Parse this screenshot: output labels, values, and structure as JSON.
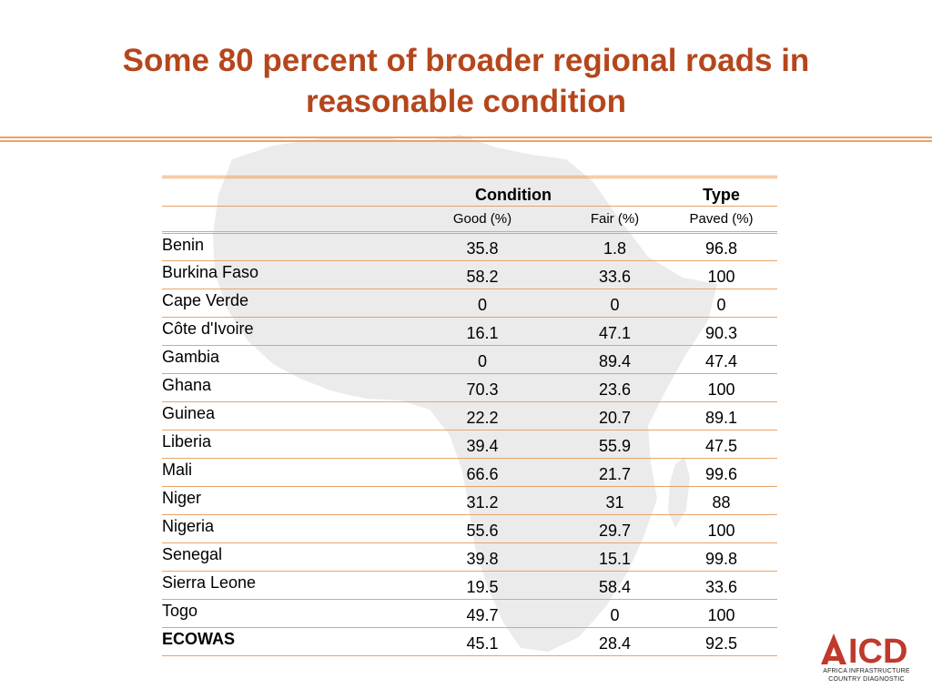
{
  "title": "Some 80 percent of broader regional roads in reasonable condition",
  "table": {
    "group_headers": {
      "condition": "Condition",
      "type": "Type"
    },
    "sub_headers": {
      "good": "Good (%)",
      "fair": "Fair (%)",
      "paved": "Paved (%)"
    },
    "rows": [
      {
        "country": "Benin",
        "good": "35.8",
        "fair": "1.8",
        "paved": "96.8"
      },
      {
        "country": "Burkina Faso",
        "good": "58.2",
        "fair": "33.6",
        "paved": "100"
      },
      {
        "country": "Cape Verde",
        "good": "0",
        "fair": "0",
        "paved": "0"
      },
      {
        "country": "Côte d'Ivoire",
        "good": "16.1",
        "fair": "47.1",
        "paved": "90.3"
      },
      {
        "country": "Gambia",
        "good": "0",
        "fair": "89.4",
        "paved": "47.4"
      },
      {
        "country": "Ghana",
        "good": "70.3",
        "fair": "23.6",
        "paved": "100"
      },
      {
        "country": "Guinea",
        "good": "22.2",
        "fair": "20.7",
        "paved": "89.1"
      },
      {
        "country": "Liberia",
        "good": "39.4",
        "fair": "55.9",
        "paved": "47.5"
      },
      {
        "country": "Mali",
        "good": "66.6",
        "fair": "21.7",
        "paved": "99.6"
      },
      {
        "country": "Niger",
        "good": "31.2",
        "fair": "31",
        "paved": "88"
      },
      {
        "country": "Nigeria",
        "good": "55.6",
        "fair": "29.7",
        "paved": "100"
      },
      {
        "country": "Senegal",
        "good": "39.8",
        "fair": "15.1",
        "paved": "99.8"
      },
      {
        "country": "Sierra Leone",
        "good": "19.5",
        "fair": "58.4",
        "paved": "33.6"
      },
      {
        "country": "Togo",
        "good": "49.7",
        "fair": "0",
        "paved": "100"
      }
    ],
    "total": {
      "country": "ECOWAS",
      "good": "45.1",
      "fair": "28.4",
      "paved": "92.5"
    }
  },
  "logo": {
    "wordmark": "AICD",
    "line1": "AFRICA INFRASTRUCTURE",
    "line2": "COUNTRY DIAGNOSTIC"
  },
  "colors": {
    "title": "#b5461c",
    "rule": "#e8a469",
    "logo_red": "#c0392b",
    "watermark": "#e9e9e9"
  }
}
